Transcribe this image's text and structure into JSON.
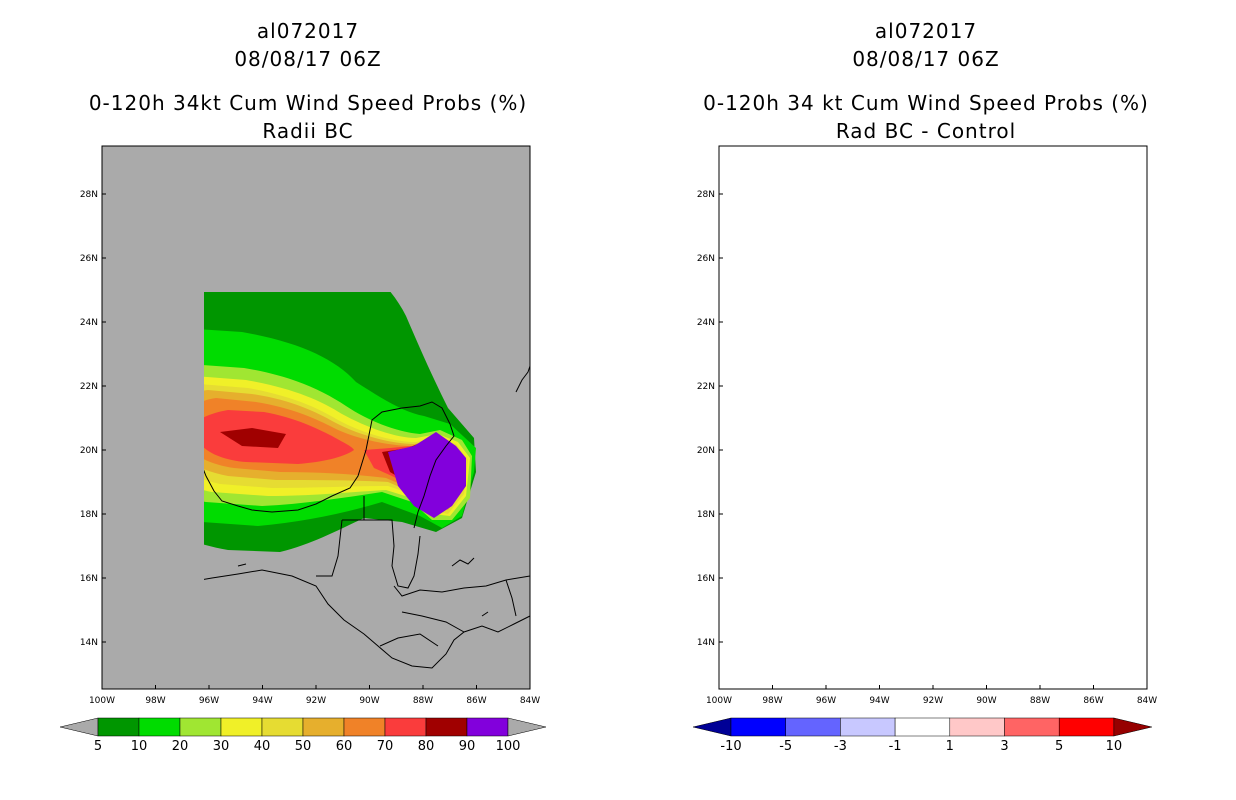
{
  "colors": {
    "land_bg": "#aaaaaa",
    "coast": "#000000",
    "prob": [
      "#009600",
      "#00dc00",
      "#a0e632",
      "#f0f028",
      "#e6dc32",
      "#e6af2d",
      "#f08228",
      "#fa3c3c",
      "#a00000",
      "#8200dc"
    ],
    "diff": [
      "#000096",
      "#0000ff",
      "#6464ff",
      "#c8c8ff",
      "#ffffff",
      "#ffc8c8",
      "#ff6464",
      "#ff0000",
      "#960000"
    ]
  },
  "left_panel": {
    "storm_id": "al072017",
    "datetime": "08/08/17 06Z",
    "title": "0-120h 34kt Cum Wind Speed Probs (%)",
    "subtitle": "Radii BC",
    "colorbar_ticks": [
      "5",
      "10",
      "20",
      "30",
      "40",
      "50",
      "60",
      "70",
      "80",
      "90",
      "100"
    ]
  },
  "right_panel": {
    "storm_id": "al072017",
    "datetime": "08/08/17 06Z",
    "title": "0-120h 34 kt Cum Wind Speed Probs (%)",
    "subtitle": "Rad BC - Control",
    "colorbar_ticks": [
      "-10",
      "-5",
      "-3",
      "-1",
      "1",
      "3",
      "5",
      "10"
    ]
  },
  "axes": {
    "lat_labels": [
      "28N",
      "26N",
      "24N",
      "22N",
      "20N",
      "18N",
      "16N",
      "14N"
    ],
    "lon_labels": [
      "100W",
      "98W",
      "96W",
      "94W",
      "92W",
      "90W",
      "88W",
      "86W",
      "84W"
    ]
  }
}
